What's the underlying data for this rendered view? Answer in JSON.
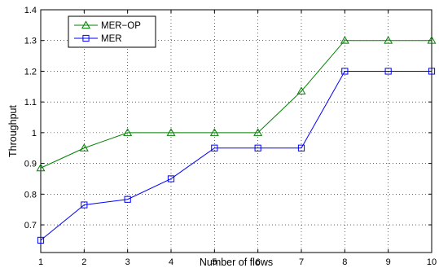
{
  "chart_data": {
    "type": "line",
    "title": "",
    "xlabel": "Number of flows",
    "ylabel": "Throughput",
    "x": [
      1,
      2,
      3,
      4,
      5,
      6,
      7,
      8,
      9,
      10
    ],
    "xticks": [
      "1",
      "2",
      "3",
      "4",
      "5",
      "6",
      "7",
      "8",
      "9",
      "10"
    ],
    "yticks": [
      "0.7",
      "0.8",
      "0.9",
      "1",
      "1.1",
      "1.2",
      "1.3",
      "1.4"
    ],
    "xlim": [
      1,
      10
    ],
    "ylim": [
      0.61,
      1.4
    ],
    "grid": true,
    "legend_position": "top-left",
    "series": [
      {
        "name": "MER−OP",
        "color": "#008000",
        "marker": "triangle",
        "values": [
          0.885,
          0.95,
          1.0,
          1.0,
          1.0,
          1.0,
          1.135,
          1.3,
          1.3,
          1.3
        ]
      },
      {
        "name": "MER",
        "color": "#0000ff",
        "marker": "square",
        "values": [
          0.65,
          0.765,
          0.783,
          0.85,
          0.95,
          0.95,
          0.95,
          1.2,
          1.2,
          1.2
        ]
      }
    ]
  }
}
